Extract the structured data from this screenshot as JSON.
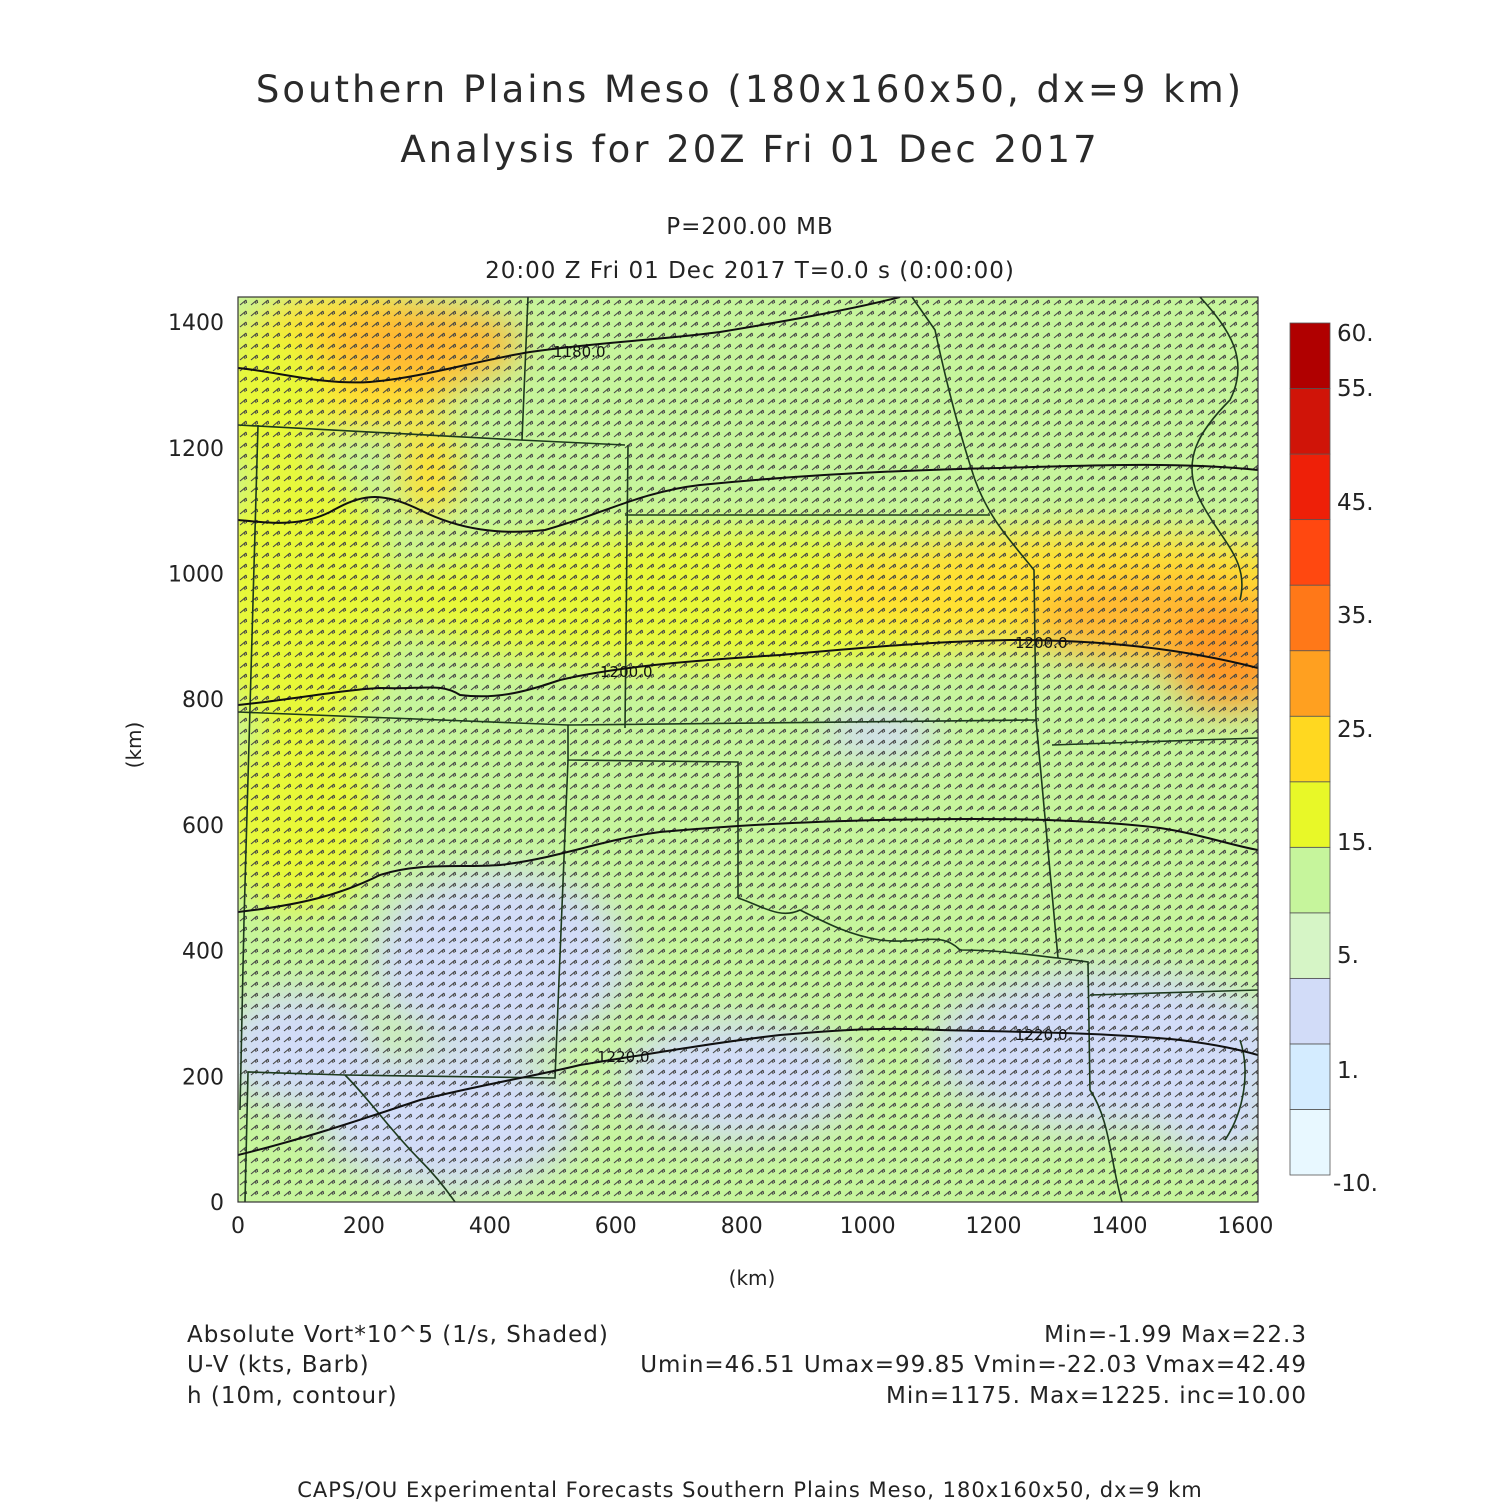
{
  "title": {
    "line1": "Southern Plains Meso (180x160x50, dx=9 km)",
    "line2": "Analysis for 20Z Fri 01 Dec 2017"
  },
  "subtitle": {
    "level": "P=200.00 MB",
    "time": "20:00 Z Fri 01 Dec 2017    T=0.0 s (0:00:00)"
  },
  "axes": {
    "x_label": "(km)",
    "y_label": "(km)",
    "x_ticks": [
      "0",
      "200",
      "400",
      "600",
      "800",
      "1000",
      "1200",
      "1400",
      "1600"
    ],
    "y_ticks": [
      "0",
      "200",
      "400",
      "600",
      "800",
      "1000",
      "1200",
      "1400"
    ],
    "x_range_km": [
      0,
      1620
    ],
    "y_range_km": [
      0,
      1440
    ]
  },
  "colorbar": {
    "labels": [
      "60.",
      "55.",
      "45.",
      "35.",
      "25.",
      "15.",
      "5.",
      "1.",
      "-10."
    ],
    "colors_bottom_to_top": [
      "#e8f8ff",
      "#d4ecff",
      "#d2dcf8",
      "#d6f5c6",
      "#c6f59c",
      "#e8f828",
      "#ffd820",
      "#ffa020",
      "#ff7818",
      "#ff4810",
      "#ee2008",
      "#d01408",
      "#b00000"
    ]
  },
  "contours": [
    {
      "label": "1180.0"
    },
    {
      "label": "1200.0"
    },
    {
      "label": "1200.0"
    },
    {
      "label": "1220.0"
    },
    {
      "label": "1220.0"
    }
  ],
  "legend": {
    "field1_name": "Absolute Vort*10^5 (1/s, Shaded)",
    "field1_stats": "Min=-1.99 Max=22.3",
    "field2_name": "U-V (kts, Barb)",
    "field2_stats": "Umin=46.51 Umax=99.85 Vmin=-22.03 Vmax=42.49",
    "field3_name": "h (10m, contour)",
    "field3_stats": "Min=1175. Max=1225. inc=10.00"
  },
  "footer": "CAPS/OU Experimental Forecasts  Southern Plains Meso, 180x160x50, dx=9 km",
  "colors": {
    "base_field": "#c6f59c",
    "barb": "#444444",
    "state_lines": "#1d3a1d",
    "contour_lines": "#111111"
  }
}
